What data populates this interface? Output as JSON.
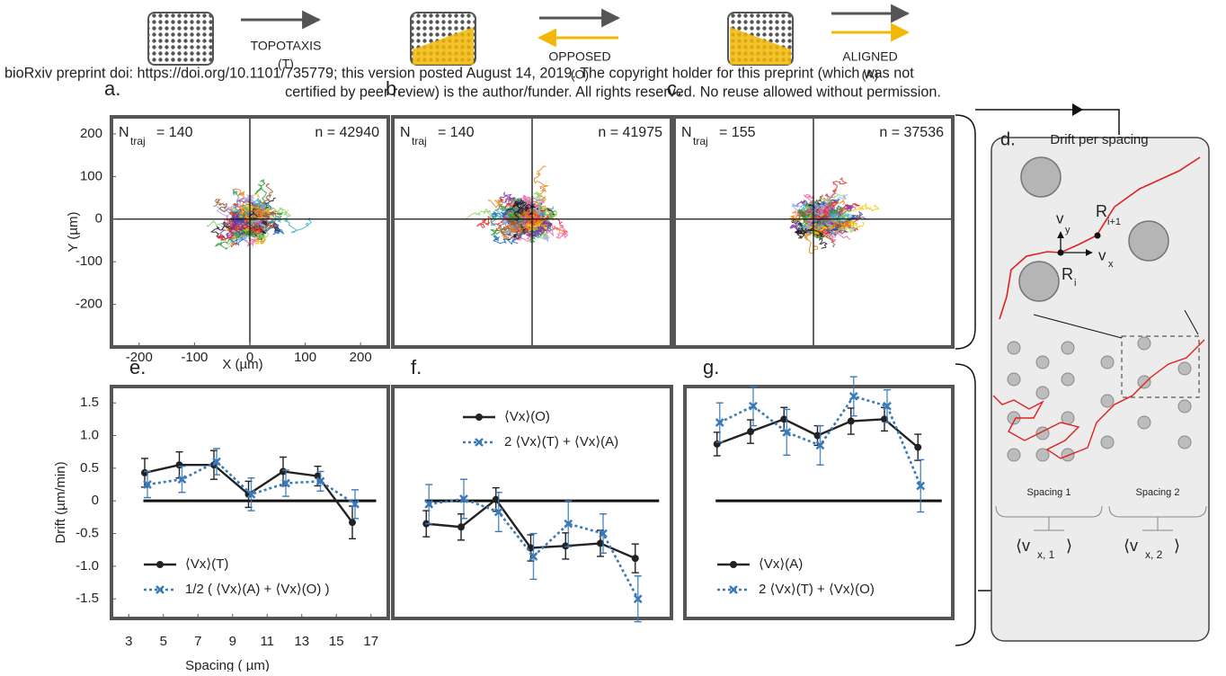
{
  "header": {
    "watermark_line1": "bioRxiv preprint doi: https://doi.org/10.1101/735779; this version posted August 14, 2019. The copyright holder for this preprint (which was not",
    "watermark_line2": "certified by peer review) is the author/funder. All rights reserved. No reuse allowed without permission."
  },
  "conditions": [
    {
      "label": "TOPOTAXIS",
      "code": "(T)"
    },
    {
      "label": "OPPOSED",
      "code": "(O)"
    },
    {
      "label": "ALIGNED",
      "code": "(A)"
    }
  ],
  "trajectory_panels": {
    "xlabel": "X (µm)",
    "ylabel": "Y (µm)",
    "xlim": [
      -250,
      250
    ],
    "ylim": [
      -300,
      240
    ],
    "xticks": [
      -200,
      -100,
      0,
      100,
      200
    ],
    "yticks": [
      -200,
      -100,
      0,
      100,
      200
    ],
    "panels": [
      {
        "letter": "a.",
        "n_traj_symbol": "N",
        "n_traj_sub": "traj",
        "n_traj": "= 140",
        "n": "n  = 42940"
      },
      {
        "letter": "b.",
        "n_traj_symbol": "N",
        "n_traj_sub": "traj",
        "n_traj": "= 140",
        "n": "n  = 41975"
      },
      {
        "letter": "c.",
        "n_traj_symbol": "N",
        "n_traj_sub": "traj",
        "n_traj": "= 155",
        "n": "n  = 37536"
      }
    ]
  },
  "diagram": {
    "letter": "d.",
    "title": "Drift per spacing",
    "v_y": "v",
    "v_y_sub": "y",
    "v_x": "v",
    "v_x_sub": "x",
    "r_i": "R",
    "r_i_sub": "i",
    "r_next": "R",
    "r_next_sub": "i+1",
    "spacing_1": "Spacing 1",
    "spacing_2": "Spacing 2",
    "mean_1": "⟨v",
    "mean_1_sub": "x, 1",
    "mean_2": "⟨v",
    "mean_2_sub": "x, 2",
    "mean_close": "⟩"
  },
  "chart_data": [
    {
      "type": "line",
      "letter": "e.",
      "ylabel": "Drift  (µm/min)",
      "xlabel": "Spacing ( µm)",
      "x": [
        4,
        6,
        8,
        10,
        12,
        14,
        16
      ],
      "xlim": [
        2,
        18
      ],
      "ylim": [
        -1.8,
        1.75
      ],
      "xticks": [
        3,
        5,
        7,
        9,
        11,
        13,
        15,
        17
      ],
      "yticks": [
        -1.5,
        {
          "value": -1,
          "label": "-1.0"
        },
        -0.5,
        0,
        0.5,
        {
          "value": 1,
          "label": "1.0"
        },
        1.5
      ],
      "legend": "lower left",
      "series": [
        {
          "name": "⟨Vx⟩(T)",
          "color": "#222222",
          "values": [
            0.43,
            0.55,
            0.55,
            0.1,
            0.45,
            0.38,
            -0.33
          ],
          "errors": [
            0.22,
            0.2,
            0.22,
            0.2,
            0.22,
            0.15,
            0.25
          ]
        },
        {
          "name": "1/2 ( ⟨Vx⟩(A) +  ⟨Vx⟩(O) )",
          "color": "#3a7ab8",
          "values": [
            0.25,
            0.33,
            0.6,
            0.1,
            0.27,
            0.3,
            -0.05
          ],
          "errors": [
            0.2,
            0.2,
            0.2,
            0.25,
            0.2,
            0.15,
            0.22
          ]
        }
      ]
    },
    {
      "type": "line",
      "letter": "f.",
      "x": [
        4,
        6,
        8,
        10,
        12,
        14,
        16
      ],
      "xlim": [
        2,
        18
      ],
      "ylim": [
        -1.8,
        1.75
      ],
      "legend": "upper left",
      "series": [
        {
          "name": "⟨Vx⟩(O)",
          "color": "#222222",
          "values": [
            -0.35,
            -0.4,
            0.02,
            -0.72,
            -0.69,
            -0.65,
            -0.88
          ],
          "errors": [
            0.2,
            0.2,
            0.18,
            0.2,
            0.2,
            0.2,
            0.22
          ]
        },
        {
          "name": "2 ⟨Vx⟩(T) + ⟨Vx⟩(A)",
          "color": "#3a7ab8",
          "values": [
            -0.05,
            0.03,
            -0.17,
            -0.85,
            -0.35,
            -0.5,
            -1.5
          ],
          "errors": [
            0.3,
            0.3,
            0.3,
            0.35,
            0.35,
            0.3,
            0.35
          ]
        }
      ]
    },
    {
      "type": "line",
      "letter": "g.",
      "x": [
        4,
        6,
        8,
        10,
        12,
        14,
        16
      ],
      "xlim": [
        2,
        18
      ],
      "ylim": [
        -1.8,
        1.75
      ],
      "legend": "lower left",
      "series": [
        {
          "name": "⟨Vx⟩(A)",
          "color": "#222222",
          "values": [
            0.87,
            1.06,
            1.25,
            1.0,
            1.22,
            1.25,
            0.82
          ],
          "errors": [
            0.18,
            0.18,
            0.18,
            0.15,
            0.2,
            0.18,
            0.2
          ]
        },
        {
          "name": "2 ⟨Vx⟩(T) + ⟨Vx⟩(O)",
          "color": "#3a7ab8",
          "values": [
            1.2,
            1.45,
            1.05,
            0.85,
            1.6,
            1.45,
            0.23
          ],
          "errors": [
            0.3,
            0.3,
            0.35,
            0.3,
            0.3,
            0.25,
            0.4
          ]
        }
      ]
    }
  ]
}
